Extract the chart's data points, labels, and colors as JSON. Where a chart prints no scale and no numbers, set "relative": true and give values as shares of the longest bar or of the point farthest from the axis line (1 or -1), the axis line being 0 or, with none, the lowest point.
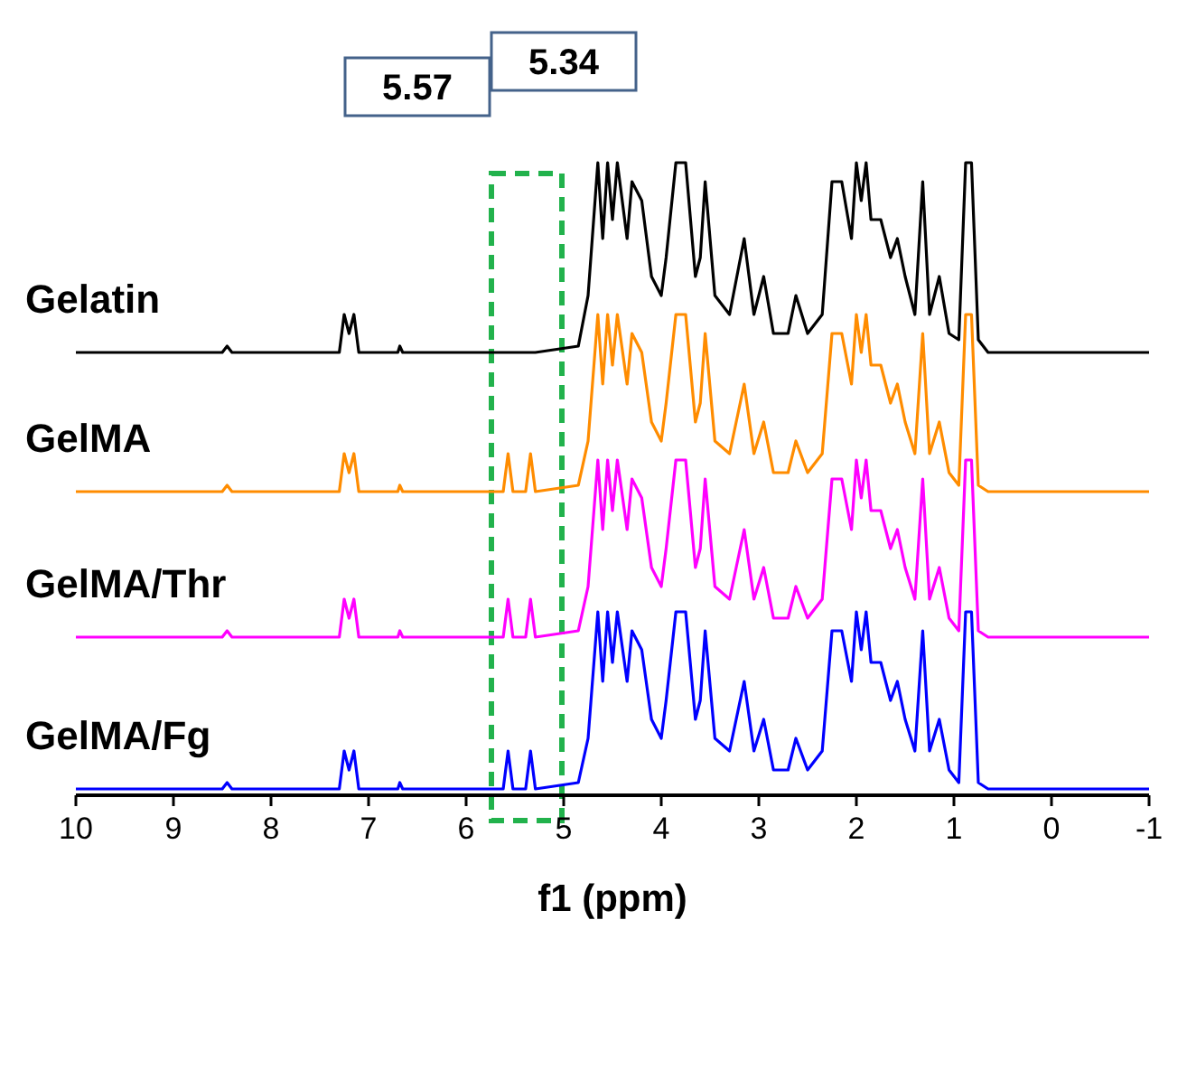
{
  "chart_data": {
    "type": "line",
    "relative": true,
    "xlabel": "f1 (ppm)",
    "xlim": [
      10,
      -1
    ],
    "xticks": [
      10,
      9,
      8,
      7,
      6,
      5,
      4,
      3,
      2,
      1,
      0,
      -1
    ],
    "grid": false,
    "legend": false,
    "annotations": [
      "5.57",
      "5.34"
    ],
    "x": [
      10,
      8.5,
      8.45,
      8.4,
      7.3,
      7.25,
      7.2,
      7.15,
      7.1,
      6.7,
      6.68,
      6.65,
      5.62,
      5.57,
      5.52,
      5.39,
      5.34,
      5.29,
      4.85,
      4.75,
      4.65,
      4.6,
      4.55,
      4.5,
      4.45,
      4.35,
      4.3,
      4.2,
      4.1,
      4.0,
      3.95,
      3.85,
      3.75,
      3.65,
      3.6,
      3.55,
      3.45,
      3.3,
      3.15,
      3.05,
      2.95,
      2.85,
      2.7,
      2.62,
      2.5,
      2.35,
      2.25,
      2.15,
      2.05,
      2.0,
      1.95,
      1.9,
      1.85,
      1.75,
      1.65,
      1.58,
      1.5,
      1.4,
      1.32,
      1.25,
      1.15,
      1.05,
      0.95,
      0.88,
      0.82,
      0.75,
      0.65,
      -1
    ],
    "series": [
      {
        "name": "Gelatin",
        "color": "#000000",
        "values": [
          0.7,
          0.7,
          0.71,
          0.7,
          0.7,
          0.76,
          0.73,
          0.76,
          0.7,
          0.7,
          0.71,
          0.7,
          0.7,
          0.7,
          0.7,
          0.7,
          0.7,
          0.7,
          0.71,
          0.79,
          1.0,
          0.88,
          1.0,
          0.91,
          1.0,
          0.88,
          0.97,
          0.94,
          0.82,
          0.79,
          0.85,
          1.0,
          1.0,
          0.82,
          0.85,
          0.97,
          0.79,
          0.76,
          0.88,
          0.76,
          0.82,
          0.73,
          0.73,
          0.79,
          0.73,
          0.76,
          0.97,
          0.97,
          0.88,
          1.0,
          0.94,
          1.0,
          0.91,
          0.91,
          0.85,
          0.88,
          0.82,
          0.76,
          0.97,
          0.76,
          0.82,
          0.73,
          0.72,
          1.0,
          1.0,
          0.72,
          0.7,
          0.7
        ]
      },
      {
        "name": "GelMA",
        "color": "#ff8c00",
        "values": [
          0.48,
          0.48,
          0.49,
          0.48,
          0.48,
          0.54,
          0.51,
          0.54,
          0.48,
          0.48,
          0.49,
          0.48,
          0.48,
          0.54,
          0.48,
          0.48,
          0.54,
          0.48,
          0.49,
          0.56,
          0.76,
          0.65,
          0.76,
          0.68,
          0.76,
          0.65,
          0.73,
          0.7,
          0.59,
          0.56,
          0.62,
          0.76,
          0.76,
          0.59,
          0.62,
          0.73,
          0.56,
          0.54,
          0.65,
          0.54,
          0.59,
          0.51,
          0.51,
          0.56,
          0.51,
          0.54,
          0.73,
          0.73,
          0.65,
          0.76,
          0.7,
          0.76,
          0.68,
          0.68,
          0.62,
          0.65,
          0.59,
          0.54,
          0.73,
          0.54,
          0.59,
          0.51,
          0.49,
          0.76,
          0.76,
          0.49,
          0.48,
          0.48
        ]
      },
      {
        "name": "GelMA/Thr",
        "color": "#ff00ff",
        "values": [
          0.25,
          0.25,
          0.26,
          0.25,
          0.25,
          0.31,
          0.28,
          0.31,
          0.25,
          0.25,
          0.26,
          0.25,
          0.25,
          0.31,
          0.25,
          0.25,
          0.31,
          0.25,
          0.26,
          0.33,
          0.53,
          0.42,
          0.53,
          0.45,
          0.53,
          0.42,
          0.5,
          0.47,
          0.36,
          0.33,
          0.39,
          0.53,
          0.53,
          0.36,
          0.39,
          0.5,
          0.33,
          0.31,
          0.42,
          0.31,
          0.36,
          0.28,
          0.28,
          0.33,
          0.28,
          0.31,
          0.5,
          0.5,
          0.42,
          0.53,
          0.47,
          0.53,
          0.45,
          0.45,
          0.39,
          0.42,
          0.36,
          0.31,
          0.5,
          0.31,
          0.36,
          0.28,
          0.26,
          0.53,
          0.53,
          0.26,
          0.25,
          0.25
        ]
      },
      {
        "name": "GelMA/Fg",
        "color": "#0000ff",
        "values": [
          0.01,
          0.01,
          0.02,
          0.01,
          0.01,
          0.07,
          0.04,
          0.07,
          0.01,
          0.01,
          0.02,
          0.01,
          0.01,
          0.07,
          0.01,
          0.01,
          0.07,
          0.01,
          0.02,
          0.09,
          0.29,
          0.18,
          0.29,
          0.21,
          0.29,
          0.18,
          0.26,
          0.23,
          0.12,
          0.09,
          0.15,
          0.29,
          0.29,
          0.12,
          0.15,
          0.26,
          0.09,
          0.07,
          0.18,
          0.07,
          0.12,
          0.04,
          0.04,
          0.09,
          0.04,
          0.07,
          0.26,
          0.26,
          0.18,
          0.29,
          0.23,
          0.29,
          0.21,
          0.21,
          0.15,
          0.18,
          0.12,
          0.07,
          0.26,
          0.07,
          0.12,
          0.04,
          0.02,
          0.29,
          0.29,
          0.02,
          0.01,
          0.01
        ]
      }
    ]
  }
}
